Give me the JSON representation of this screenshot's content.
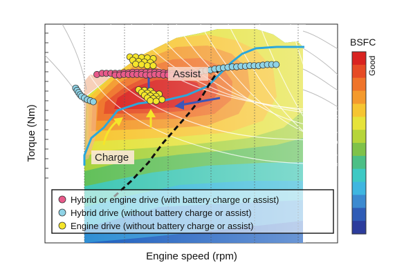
{
  "chart_data": {
    "type": "heatmap",
    "subtype": "engine-efficiency-map",
    "title": "",
    "xlabel": "Engine speed (rpm)",
    "ylabel": "Torque (Nm)",
    "x_tick_labels_shown": false,
    "y_tick_labels_shown": false,
    "grid": true,
    "colorbar": {
      "title": "BSFC",
      "annotation": "Good",
      "colors_worst_to_best": [
        "#2c3c9c",
        "#2f5cb6",
        "#3c8ad0",
        "#3fb6e0",
        "#3dc9c4",
        "#4cbf86",
        "#7fc24a",
        "#b6d53a",
        "#e6e33a",
        "#f6c531",
        "#f49a2d",
        "#ef742a",
        "#e64b25",
        "#d92320"
      ]
    },
    "annotations": [
      "Assist",
      "Charge"
    ],
    "legend": {
      "placement": "bottom-left",
      "entries": [
        {
          "label": "Hybrid or engine drive (with battery charge or assist)",
          "color": "#e85a8a"
        },
        {
          "label": "Hybrid drive (without battery charge or assist)",
          "color": "#8fd3e6"
        },
        {
          "label": "Engine drive (without battery charge or assist)",
          "color": "#f5e52a"
        }
      ]
    },
    "series": [
      {
        "marker": "pink",
        "points": [
          [
            0.355,
            0.46
          ],
          [
            0.39,
            0.45
          ],
          [
            0.42,
            0.45
          ],
          [
            0.45,
            0.45
          ],
          [
            0.48,
            0.45
          ],
          [
            0.51,
            0.45
          ],
          [
            0.54,
            0.445
          ],
          [
            0.57,
            0.445
          ],
          [
            0.6,
            0.44
          ],
          [
            0.63,
            0.44
          ],
          [
            0.66,
            0.44
          ],
          [
            0.69,
            0.44
          ],
          [
            0.72,
            0.44
          ],
          [
            0.75,
            0.44
          ],
          [
            0.78,
            0.44
          ],
          [
            0.81,
            0.445
          ],
          [
            0.84,
            0.45
          ],
          [
            0.87,
            0.45
          ],
          [
            0.9,
            0.455
          ],
          [
            0.93,
            0.46
          ],
          [
            0.96,
            0.45
          ],
          [
            0.99,
            0.45
          ],
          [
            1.02,
            0.45
          ],
          [
            1.05,
            0.45
          ],
          [
            0.48,
            0.465
          ],
          [
            0.51,
            0.465
          ],
          [
            0.54,
            0.46
          ],
          [
            0.57,
            0.46
          ],
          [
            0.6,
            0.46
          ],
          [
            0.63,
            0.46
          ],
          [
            0.66,
            0.46
          ],
          [
            0.69,
            0.465
          ],
          [
            0.72,
            0.465
          ],
          [
            0.75,
            0.46
          ],
          [
            0.78,
            0.46
          ],
          [
            0.81,
            0.465
          ],
          [
            0.84,
            0.465
          ],
          [
            0.87,
            0.47
          ],
          [
            0.9,
            0.47
          ],
          [
            0.93,
            0.475
          ]
        ]
      },
      {
        "marker": "light-blue",
        "points": [
          [
            0.21,
            0.585
          ],
          [
            0.22,
            0.605
          ],
          [
            0.23,
            0.625
          ],
          [
            0.24,
            0.645
          ],
          [
            0.25,
            0.66
          ],
          [
            0.27,
            0.675
          ],
          [
            0.29,
            0.69
          ],
          [
            0.31,
            0.7
          ],
          [
            0.33,
            0.71
          ],
          [
            1.07,
            0.43
          ],
          [
            1.1,
            0.425
          ],
          [
            1.13,
            0.42
          ],
          [
            1.16,
            0.41
          ],
          [
            1.19,
            0.405
          ],
          [
            1.22,
            0.4
          ],
          [
            1.25,
            0.395
          ],
          [
            1.28,
            0.39
          ],
          [
            1.31,
            0.39
          ],
          [
            1.34,
            0.385
          ],
          [
            1.37,
            0.385
          ],
          [
            1.4,
            0.38
          ],
          [
            1.43,
            0.38
          ],
          [
            1.46,
            0.38
          ],
          [
            1.49,
            0.375
          ],
          [
            1.52,
            0.37
          ],
          [
            1.55,
            0.37
          ],
          [
            1.58,
            0.37
          ]
        ]
      },
      {
        "marker": "yellow",
        "points": [
          [
            0.58,
            0.3
          ],
          [
            0.62,
            0.3
          ],
          [
            0.66,
            0.305
          ],
          [
            0.7,
            0.31
          ],
          [
            0.74,
            0.315
          ],
          [
            0.6,
            0.33
          ],
          [
            0.64,
            0.34
          ],
          [
            0.68,
            0.345
          ],
          [
            0.72,
            0.35
          ],
          [
            0.62,
            0.365
          ],
          [
            0.66,
            0.37
          ],
          [
            0.7,
            0.38
          ],
          [
            0.74,
            0.38
          ],
          [
            0.64,
            0.6
          ],
          [
            0.68,
            0.605
          ],
          [
            0.72,
            0.61
          ],
          [
            0.66,
            0.625
          ],
          [
            0.7,
            0.63
          ],
          [
            0.74,
            0.635
          ],
          [
            0.78,
            0.64
          ],
          [
            0.68,
            0.65
          ],
          [
            0.72,
            0.655
          ],
          [
            0.76,
            0.66
          ],
          [
            0.7,
            0.675
          ],
          [
            0.74,
            0.68
          ],
          [
            0.78,
            0.685
          ],
          [
            0.8,
            0.69
          ],
          [
            0.72,
            0.7
          ],
          [
            0.76,
            0.705
          ]
        ]
      }
    ]
  }
}
